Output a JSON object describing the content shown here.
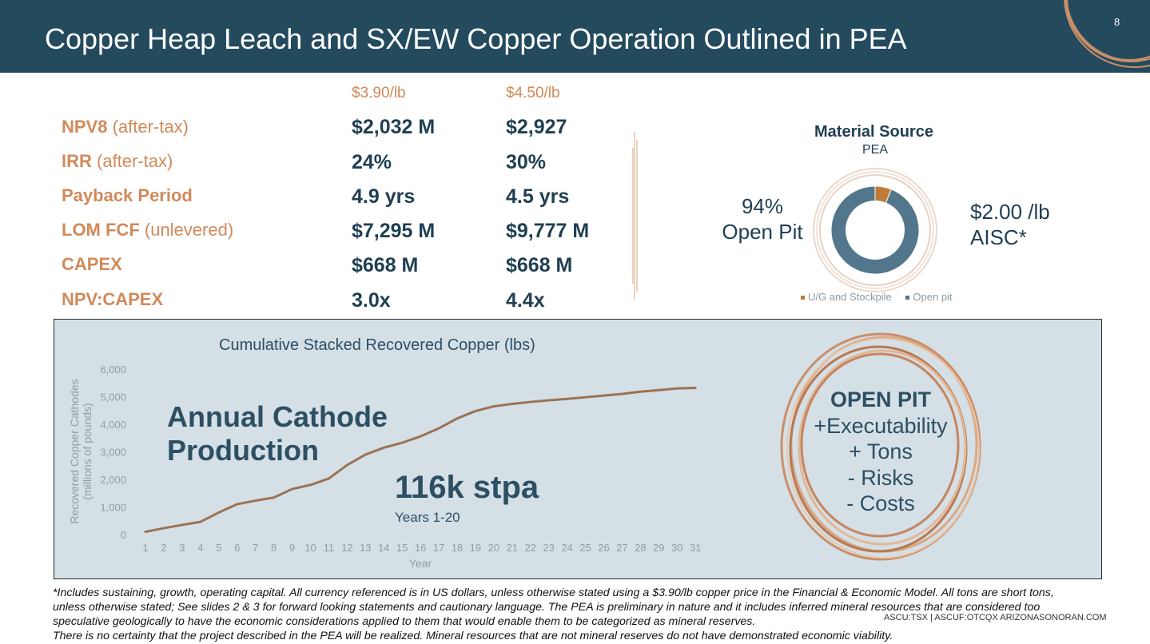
{
  "header": {
    "title": "Copper Heap Leach and SX/EW Copper Operation Outlined in PEA",
    "page_number": "8",
    "bg_color": "#244a5e"
  },
  "metrics": {
    "price_headers": [
      "$3.90/lb",
      "$4.50/lb"
    ],
    "rows": [
      {
        "label": "NPV8",
        "sub": " (after-tax)",
        "v1": "$2,032 M",
        "v2": "$2,927"
      },
      {
        "label": "IRR",
        "sub": " (after-tax)",
        "v1": "24%",
        "v2": "30%"
      },
      {
        "label": "Payback Period",
        "sub": "",
        "v1": "4.9 yrs",
        "v2": "4.5 yrs"
      },
      {
        "label": "LOM FCF",
        "sub": " (unlevered)",
        "v1": "$7,295 M",
        "v2": "$9,777 M"
      },
      {
        "label": "CAPEX",
        "sub": "",
        "v1": "$668 M",
        "v2": "$668 M"
      },
      {
        "label": "NPV:CAPEX",
        "sub": "",
        "v1": "3.0x",
        "v2": "4.4x"
      }
    ]
  },
  "material_source": {
    "title": "Material Source",
    "subtitle": "PEA",
    "left_label": {
      "pct": "94%",
      "name": "Open Pit"
    },
    "right_label": {
      "value": "$2.00 /lb",
      "name": "AISC*"
    },
    "legend": [
      {
        "name": "U/G and Stockpile",
        "color": "#c07a3a"
      },
      {
        "name": "Open pit",
        "color": "#52778c"
      }
    ],
    "slices": [
      {
        "name": "U/G and Stockpile",
        "value": 6,
        "color": "#c07a3a"
      },
      {
        "name": "Open pit",
        "value": 94,
        "color": "#52778c"
      }
    ]
  },
  "chart_data": {
    "type": "line",
    "title": "Cumulative Stacked Recovered Copper (lbs)",
    "xlabel": "Year",
    "ylabel": "Recovered Copper Cathodes (millions of pounds)",
    "ylim": [
      0,
      6000
    ],
    "yticks": [
      "0",
      "1,000",
      "2,000",
      "3,000",
      "4,000",
      "5,000",
      "6,000"
    ],
    "x": [
      1,
      2,
      3,
      4,
      5,
      6,
      7,
      8,
      9,
      10,
      11,
      12,
      13,
      14,
      15,
      16,
      17,
      18,
      19,
      20,
      21,
      22,
      23,
      24,
      25,
      26,
      27,
      28,
      29,
      30,
      31
    ],
    "series": [
      {
        "values": [
          100,
          230,
          350,
          460,
          800,
          1100,
          1230,
          1340,
          1650,
          1800,
          2030,
          2520,
          2900,
          3150,
          3330,
          3560,
          3850,
          4210,
          4480,
          4650,
          4740,
          4810,
          4870,
          4920,
          4980,
          5040,
          5100,
          5180,
          5240,
          5300,
          5320
        ],
        "color": "#9a7355"
      }
    ],
    "grid": false
  },
  "panel": {
    "big_label_line1": "Annual Cathode",
    "big_label_line2": "Production",
    "stpa": "116k stpa",
    "years": "Years 1-20",
    "open_pit": {
      "head": "OPEN PIT",
      "lines": [
        "+Executability",
        "+ Tons",
        "- Risks",
        "- Costs"
      ]
    }
  },
  "footnote": {
    "lines": [
      "*Includes sustaining, growth, operating capital. All currency referenced is in US dollars, unless otherwise stated using a $3.90/lb copper price in the Financial & Economic Model. All tons are short tons,",
      "unless otherwise stated; See slides 2 & 3 for forward looking statements and cautionary language. The PEA is preliminary in nature and it includes inferred mineral resources that are considered too",
      "speculative geologically to have the economic considerations applied to them that would enable them to be categorized as mineral reserves.",
      "There is no certainty that the project described in the PEA will be realized. Mineral resources that are not mineral reserves do not have demonstrated economic viability."
    ],
    "ticker": "ASCU:TSX | ASCUF:OTCQX   ARIZONASONORAN.COM"
  }
}
